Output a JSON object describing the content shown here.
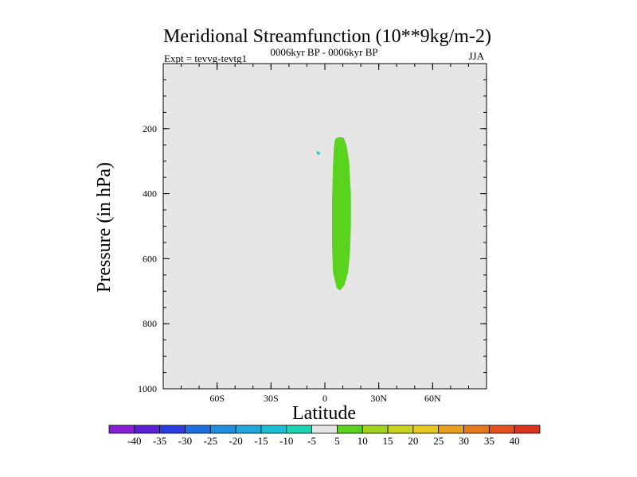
{
  "chart_data": {
    "type": "heatmap",
    "title": "Meridional Streamfunction (10**9kg/m-2)",
    "subtitle": "0006kyr BP - 0006kyr BP",
    "left_label": "Expt = tevvg-tevtg1",
    "right_label": "JJA",
    "xlabel": "Latitude",
    "ylabel": "Pressure (in hPa)",
    "xlim": [
      -90,
      90
    ],
    "ylim": [
      1000,
      0
    ],
    "x_ticks": [
      {
        "value": -60,
        "label": "60S"
      },
      {
        "value": -30,
        "label": "30S"
      },
      {
        "value": 0,
        "label": "0"
      },
      {
        "value": 30,
        "label": "30N"
      },
      {
        "value": 60,
        "label": "60N"
      }
    ],
    "x_minor_step": 10,
    "y_ticks": [
      {
        "value": 200,
        "label": "200"
      },
      {
        "value": 400,
        "label": "400"
      },
      {
        "value": 600,
        "label": "600"
      },
      {
        "value": 800,
        "label": "800"
      },
      {
        "value": 1000,
        "label": "1000"
      }
    ],
    "y_minor_step": 50,
    "background_color": "#e6e6e6",
    "filled_regions": [
      {
        "name": "positive-cell-5-10",
        "level": "5 to 10",
        "color": "#5ad31e",
        "outline": [
          [
            5.5,
            236
          ],
          [
            6.5,
            228
          ],
          [
            8.5,
            226
          ],
          [
            10.5,
            228
          ],
          [
            12,
            250
          ],
          [
            13.5,
            300
          ],
          [
            14.5,
            400
          ],
          [
            14.5,
            500
          ],
          [
            14,
            580
          ],
          [
            13,
            640
          ],
          [
            11,
            680
          ],
          [
            8.5,
            698
          ],
          [
            6.5,
            690
          ],
          [
            4.5,
            640
          ],
          [
            4,
            550
          ],
          [
            4,
            420
          ],
          [
            4.5,
            320
          ],
          [
            5,
            260
          ]
        ]
      },
      {
        "name": "negative-blip",
        "level": "-10 to -5",
        "color": "#22c8b4",
        "outline": [
          [
            -4.5,
            268
          ],
          [
            -2.5,
            275
          ],
          [
            -3.5,
            282
          ],
          [
            -4.5,
            276
          ]
        ]
      }
    ],
    "colorbar": {
      "levels": [
        -40,
        -35,
        -30,
        -25,
        -20,
        -15,
        -10,
        -5,
        5,
        10,
        15,
        20,
        25,
        30,
        35,
        40
      ],
      "colors": [
        "#8b1ed8",
        "#5a1ed8",
        "#2b3ce0",
        "#1e6ee0",
        "#1e8fe0",
        "#1ea8dc",
        "#19bed2",
        "#1ed2b4",
        "#e6e6e6",
        "#5ad31e",
        "#a0d21e",
        "#c8d21e",
        "#e6c81e",
        "#e6a01e",
        "#e6781e",
        "#e6501e",
        "#dc321e"
      ]
    }
  }
}
